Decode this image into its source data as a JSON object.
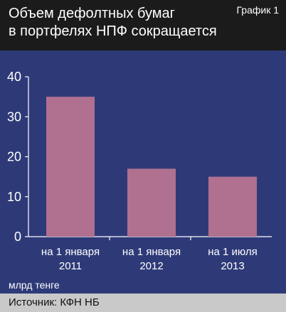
{
  "header": {
    "title_line1": "Объем дефолтных бумаг",
    "title_line2": "в портфелях НПФ сокращается",
    "chart_number": "График 1"
  },
  "unit_label": "млрд тенге",
  "source": "Источник: КФН НБ",
  "colors": {
    "background": "#2e3a78",
    "bar": "#b0708f",
    "header": "#1b1b1b",
    "footer": "#c9c9c9",
    "axis": "#ffffff"
  },
  "chart_data": {
    "type": "bar",
    "categories": [
      [
        "на 1 января",
        "2011"
      ],
      [
        "на 1 января",
        "2012"
      ],
      [
        "на 1 июля",
        "2013"
      ]
    ],
    "values": [
      35,
      17,
      15
    ],
    "yticks": [
      0,
      10,
      20,
      30,
      40
    ],
    "ylim": [
      0,
      40
    ],
    "ylabel": "млрд тенге",
    "grid": false
  }
}
